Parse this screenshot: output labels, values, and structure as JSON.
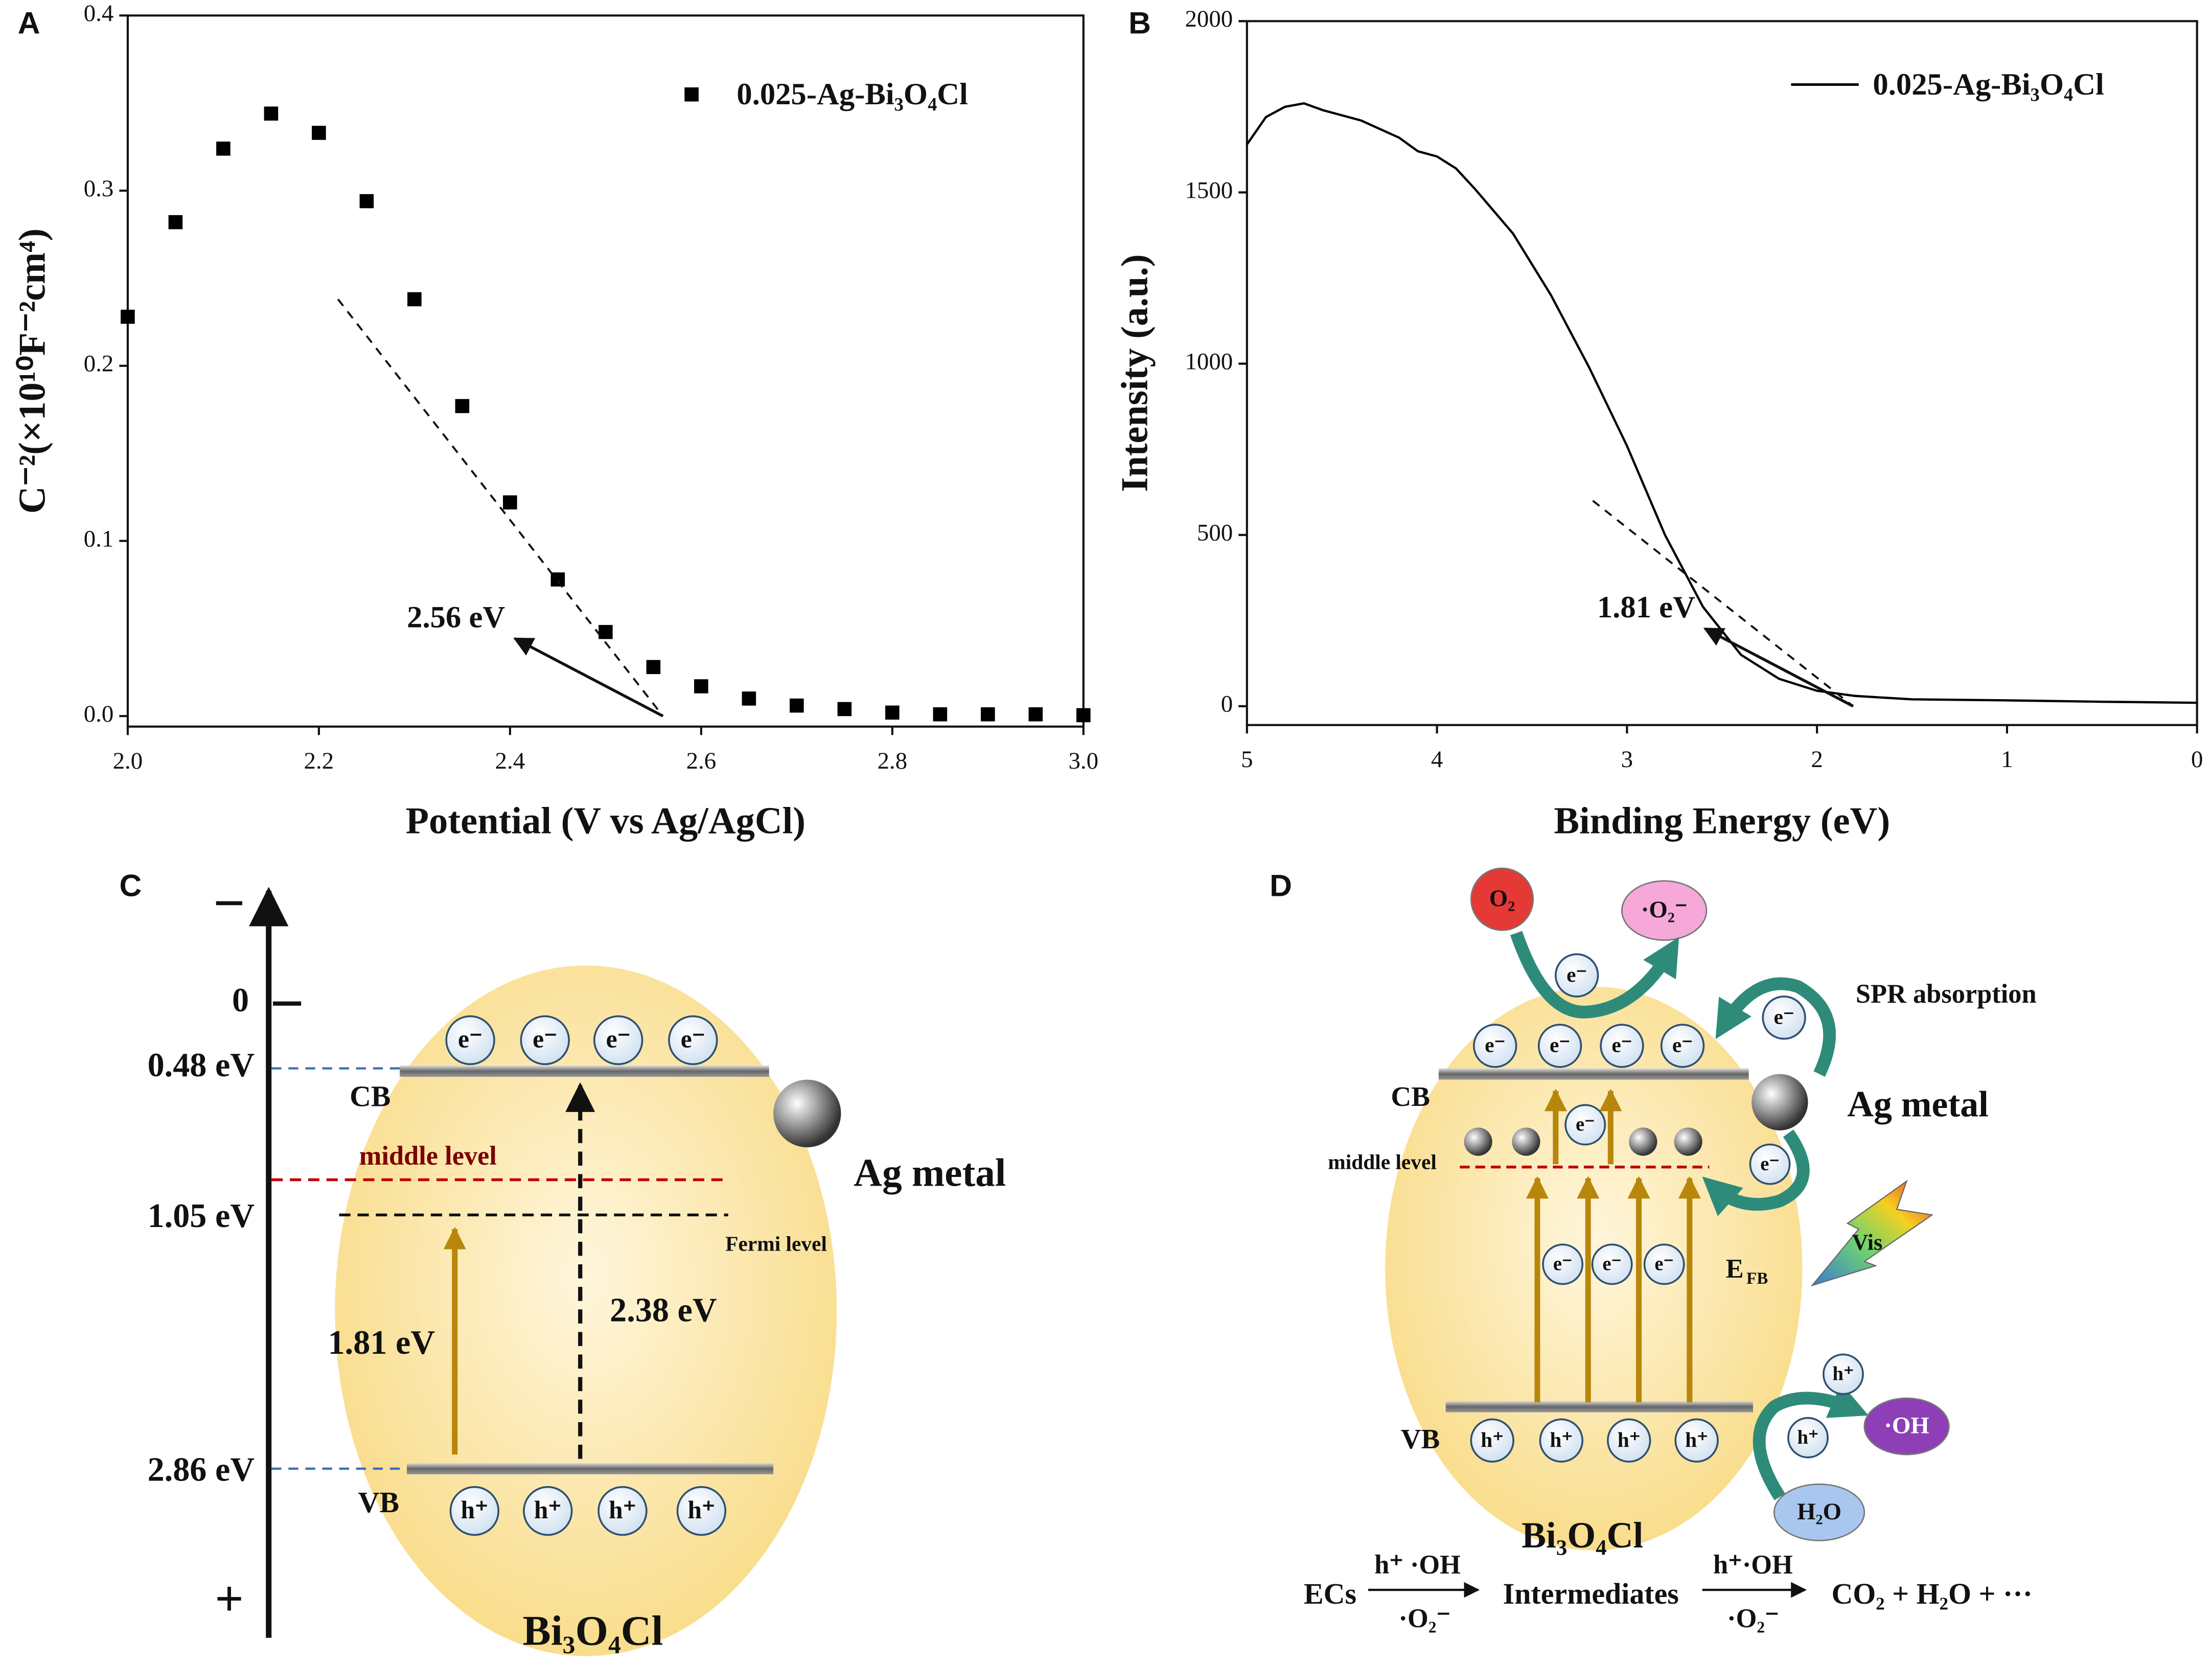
{
  "chart_data": [
    {
      "type": "scatter",
      "label": "A",
      "x_label": "Potential (V vs Ag/AgCl)",
      "y_label": "C⁻²(×10¹⁰F⁻²cm⁴)",
      "x": [
        2.0,
        2.05,
        2.1,
        2.15,
        2.2,
        2.25,
        2.3,
        2.35,
        2.4,
        2.45,
        2.5,
        2.55,
        2.6,
        2.65,
        2.7,
        2.75,
        2.8,
        2.85,
        2.9,
        2.95,
        3.0
      ],
      "series": [
        {
          "name": "0.025-Ag-Bi₃O₄Cl",
          "color": "#000000",
          "values": [
            0.228,
            0.282,
            0.324,
            0.344,
            0.333,
            0.294,
            0.238,
            0.177,
            0.122,
            0.078,
            0.048,
            0.028,
            0.017,
            0.01,
            0.006,
            0.004,
            0.002,
            0.001,
            0.001,
            0.001,
            0.0005
          ]
        }
      ],
      "xlim": [
        2.0,
        3.0
      ],
      "ylim": [
        -0.006,
        0.4
      ],
      "xticks": [
        {
          "value": 2.0,
          "label": "2.0"
        },
        2.2,
        2.4,
        2.6,
        2.8,
        {
          "value": 3.0,
          "label": "3.0"
        }
      ],
      "yticks": [
        {
          "value": 0,
          "label": "0.0"
        },
        0.1,
        0.2,
        0.3,
        0.4
      ],
      "tangent": {
        "x": [
          2.22,
          2.56
        ],
        "y": [
          0.238,
          0
        ]
      },
      "annotation": {
        "text": "2.56 eV",
        "x": 2.56,
        "y": 0
      }
    },
    {
      "type": "line",
      "label": "B",
      "x_label": "Binding Energy (eV)",
      "y_label": "Intensity (a.u.)",
      "x": [
        5.0,
        4.9,
        4.8,
        4.7,
        4.6,
        4.4,
        4.2,
        4.1,
        4.0,
        3.9,
        3.8,
        3.6,
        3.4,
        3.2,
        3.0,
        2.8,
        2.6,
        2.4,
        2.2,
        2.0,
        1.8,
        1.5,
        1.0,
        0.5,
        0.0
      ],
      "series": [
        {
          "name": "0.025-Ag-Bi₃O₄Cl",
          "color": "#000000",
          "values": [
            1640,
            1720,
            1750,
            1760,
            1740,
            1710,
            1660,
            1620,
            1605,
            1570,
            1510,
            1380,
            1200,
            990,
            760,
            500,
            290,
            150,
            80,
            45,
            30,
            20,
            17,
            13,
            10
          ]
        }
      ],
      "xlim": [
        5,
        0
      ],
      "ylim": [
        -55,
        2000
      ],
      "xticks": [
        5,
        4,
        3,
        2,
        1,
        0
      ],
      "yticks": [
        0,
        500,
        1000,
        1500,
        2000
      ],
      "tangent": {
        "x": [
          3.18,
          1.81
        ],
        "y": [
          600,
          0
        ]
      },
      "annotation": {
        "text": "1.81 eV",
        "x": 1.81,
        "y": 0
      }
    }
  ],
  "diagrams": {
    "C": {
      "label": "C",
      "minus": "−",
      "zero": "0",
      "plus": "+",
      "levels": [
        "0.48 eV",
        "1.05 eV",
        "2.86 eV"
      ],
      "cb": "CB",
      "vb": "VB",
      "electrons": [
        "e⁻",
        "e⁻",
        "e⁻",
        "e⁻"
      ],
      "holes": [
        "h⁺",
        "h⁺",
        "h⁺",
        "h⁺"
      ],
      "middle_level": "middle level",
      "fermi_level": "Fermi level",
      "ag": "Ag metal",
      "gap1": "1.81 eV",
      "gap2": "2.38 eV",
      "material": "Bi₃O₄Cl"
    },
    "D": {
      "label": "D",
      "o2": "O₂",
      "superoxide": "·O₂⁻",
      "top_electron": "e⁻",
      "spr": "SPR absorption",
      "spr_electron": "e⁻",
      "cb": "CB",
      "vb": "VB",
      "electrons": [
        "e⁻",
        "e⁻",
        "e⁻",
        "e⁻"
      ],
      "ag": "Ag metal",
      "middle_level": "middle level",
      "mid_electron": "e⁻",
      "ag_electron": "e⁻",
      "gap_electrons": [
        "e⁻",
        "e⁻",
        "e⁻"
      ],
      "efb": {
        "main": "E",
        "sub": "FB"
      },
      "vis": "Vis",
      "holes": [
        "h⁺",
        "h⁺",
        "h⁺",
        "h⁺"
      ],
      "out_holes": [
        "h⁺",
        "h⁺"
      ],
      "hydroxyl": "·OH",
      "water": "H₂O",
      "material": "Bi₃O₄Cl",
      "equation": {
        "start": "ECs",
        "over1": "h⁺ ·OH",
        "under1": "·O₂⁻",
        "middle": "Intermediates",
        "over2": "h⁺·OH",
        "under2": "·O₂⁻",
        "end": "CO₂ + H₂O + ···"
      }
    }
  }
}
